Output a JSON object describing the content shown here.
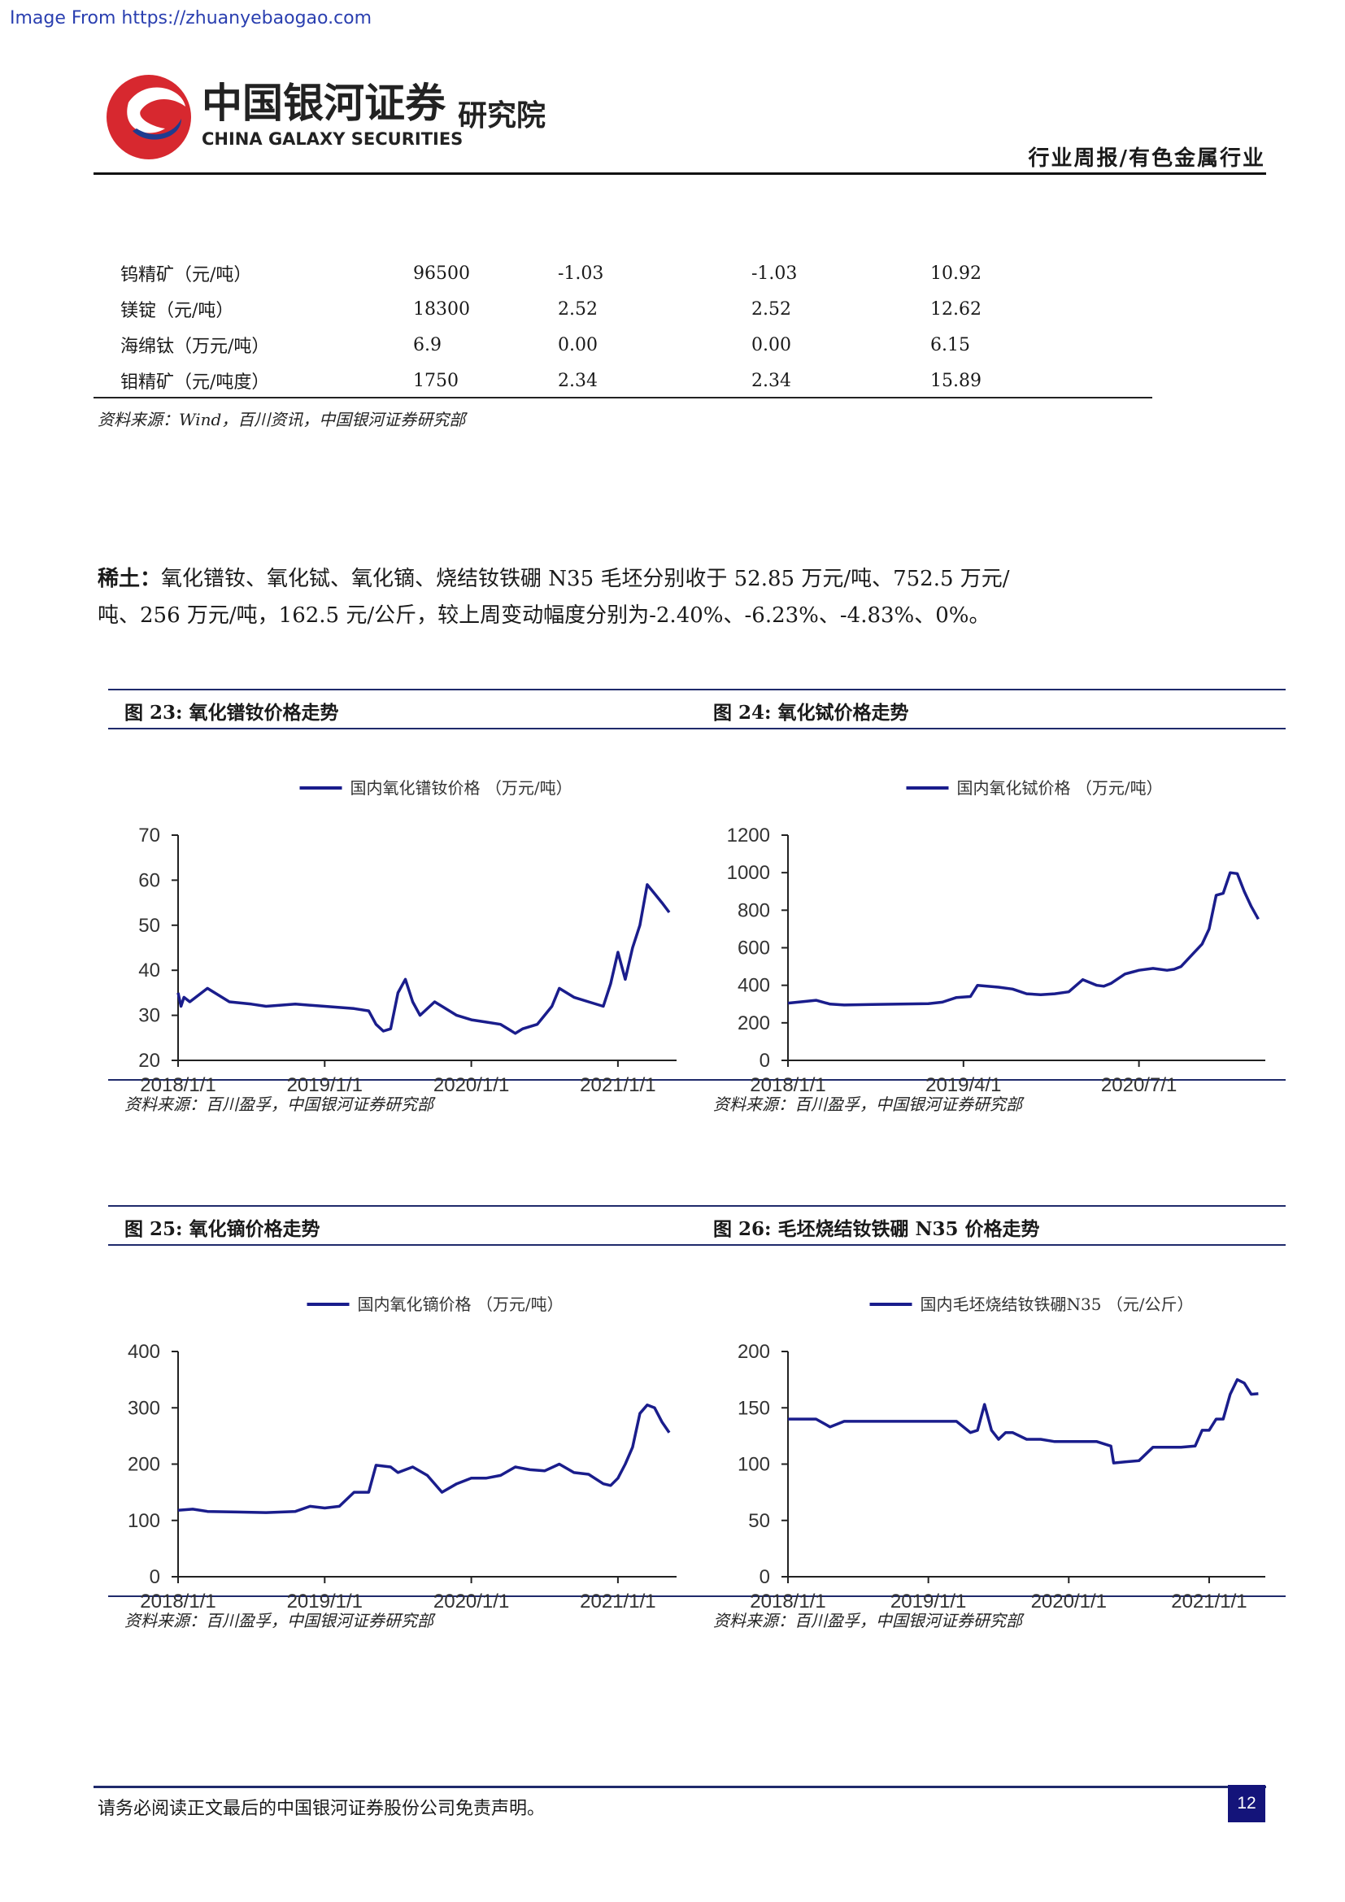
{
  "watermark": "Image From https://zhuanyebaogao.com",
  "header": {
    "logo_cn": "中国银河证券",
    "logo_en": "CHINA GALAXY SECURITIES",
    "logo_inst": "研究院",
    "category": "行业周报/有色金属行业",
    "colors": {
      "logo_red": "#d7282f",
      "logo_blue": "#1f3c8f"
    }
  },
  "table": {
    "rows": [
      [
        "钨精矿（元/吨）",
        "96500",
        "-1.03",
        "-1.03",
        "10.92"
      ],
      [
        "镁锭（元/吨）",
        "18300",
        "2.52",
        "2.52",
        "12.62"
      ],
      [
        "海绵钛（万元/吨）",
        "6.9",
        "0.00",
        "0.00",
        "6.15"
      ],
      [
        "钼精矿（元/吨度）",
        "1750",
        "2.34",
        "2.34",
        "15.89"
      ]
    ],
    "source": "资料来源：Wind，百川资讯，中国银河证券研究部"
  },
  "rare_earth": {
    "label": "稀土：",
    "text": "氧化镨钕、氧化铽、氧化镝、烧结钕铁硼 N35 毛坯分别收于 52.85 万元/吨、752.5 万元/吨、256 万元/吨，162.5 元/公斤，较上周变动幅度分别为-2.40%、-6.23%、-4.83%、0%。"
  },
  "figures": [
    {
      "title": "图 23:  氧化镨钕价格走势",
      "source": "资料来源：百川盈孚，中国银河证券研究部",
      "chart_data": {
        "type": "line",
        "series": [
          {
            "name": "国内氧化镨钕价格 （万元/吨）",
            "x": [
              2018.0,
              2018.02,
              2018.04,
              2018.08,
              2018.2,
              2018.35,
              2018.5,
              2018.6,
              2018.8,
              2019.0,
              2019.2,
              2019.3,
              2019.35,
              2019.4,
              2019.45,
              2019.5,
              2019.55,
              2019.6,
              2019.65,
              2019.75,
              2019.8,
              2019.9,
              2020.0,
              2020.1,
              2020.2,
              2020.25,
              2020.3,
              2020.35,
              2020.45,
              2020.5,
              2020.55,
              2020.6,
              2020.7,
              2020.8,
              2020.9,
              2020.95,
              2021.0,
              2021.05,
              2021.1,
              2021.15,
              2021.2,
              2021.25,
              2021.3,
              2021.35
            ],
            "values": [
              35,
              32,
              34,
              33,
              36,
              33,
              32.5,
              32,
              32.5,
              32,
              31.5,
              31,
              28,
              26.5,
              27,
              35,
              38,
              33,
              30,
              33,
              32,
              30,
              29,
              28.5,
              28,
              27,
              26,
              27,
              28,
              30,
              32,
              36,
              34,
              33,
              32,
              37,
              44,
              38,
              45,
              50,
              59,
              57,
              55,
              52.85
            ]
          }
        ],
        "xticks": [
          "2018/1/1",
          "2019/1/1",
          "2020/1/1",
          "2021/1/1"
        ],
        "xtick_positions": [
          2018,
          2019,
          2020,
          2021
        ],
        "xlim": [
          2018,
          2021.4
        ],
        "yticks": [
          20,
          30,
          40,
          50,
          60,
          70
        ],
        "ylim": [
          20,
          70
        ],
        "legend_placement": "top-center",
        "color": "#1a1d8c"
      }
    },
    {
      "title": "图 24:  氧化铽价格走势",
      "source": "资料来源：百川盈孚，中国银河证券研究部",
      "chart_data": {
        "type": "line",
        "series": [
          {
            "name": "国内氧化铽价格 （万元/吨）",
            "x": [
              2018.0,
              2018.2,
              2018.3,
              2018.4,
              2018.6,
              2018.8,
              2019.0,
              2019.1,
              2019.2,
              2019.3,
              2019.35,
              2019.5,
              2019.6,
              2019.7,
              2019.8,
              2019.9,
              2020.0,
              2020.1,
              2020.2,
              2020.25,
              2020.3,
              2020.4,
              2020.45,
              2020.5,
              2020.6,
              2020.7,
              2020.75,
              2020.8,
              2020.9,
              2020.95,
              2021.0,
              2021.05,
              2021.1,
              2021.15,
              2021.2,
              2021.25,
              2021.3,
              2021.35
            ],
            "values": [
              305,
              320,
              300,
              295,
              298,
              300,
              302,
              310,
              335,
              340,
              400,
              390,
              380,
              355,
              350,
              355,
              365,
              430,
              400,
              395,
              410,
              460,
              470,
              480,
              490,
              480,
              485,
              500,
              580,
              620,
              700,
              880,
              890,
              1000,
              995,
              900,
              820,
              752.5
            ]
          }
        ],
        "xticks": [
          "2018/1/1",
          "2019/4/1",
          "2020/7/1"
        ],
        "xtick_positions": [
          2018,
          2019.25,
          2020.5
        ],
        "xlim": [
          2018,
          2021.4
        ],
        "yticks": [
          0,
          200,
          400,
          600,
          800,
          1000,
          1200
        ],
        "ylim": [
          0,
          1200
        ],
        "legend_placement": "top-center",
        "color": "#1a1d8c"
      }
    },
    {
      "title": "图 25:  氧化镝价格走势",
      "source": "资料来源：百川盈孚，中国银河证券研究部",
      "chart_data": {
        "type": "line",
        "series": [
          {
            "name": "国内氧化镝价格 （万元/吨）",
            "x": [
              2018.0,
              2018.1,
              2018.2,
              2018.4,
              2018.6,
              2018.8,
              2018.9,
              2019.0,
              2019.1,
              2019.2,
              2019.3,
              2019.35,
              2019.45,
              2019.5,
              2019.6,
              2019.7,
              2019.8,
              2019.9,
              2020.0,
              2020.1,
              2020.2,
              2020.3,
              2020.4,
              2020.5,
              2020.6,
              2020.7,
              2020.8,
              2020.9,
              2020.95,
              2021.0,
              2021.05,
              2021.1,
              2021.15,
              2021.2,
              2021.25,
              2021.3,
              2021.35
            ],
            "values": [
              118,
              120,
              116,
              115,
              114,
              116,
              125,
              122,
              125,
              150,
              150,
              198,
              195,
              185,
              195,
              180,
              150,
              165,
              175,
              175,
              180,
              195,
              190,
              188,
              200,
              185,
              182,
              165,
              162,
              175,
              200,
              230,
              290,
              305,
              300,
              275,
              256
            ]
          }
        ],
        "xticks": [
          "2018/1/1",
          "2019/1/1",
          "2020/1/1",
          "2021/1/1"
        ],
        "xtick_positions": [
          2018,
          2019,
          2020,
          2021
        ],
        "xlim": [
          2018,
          2021.4
        ],
        "yticks": [
          0,
          100,
          200,
          300,
          400
        ],
        "ylim": [
          0,
          400
        ],
        "legend_placement": "top-center",
        "color": "#1a1d8c"
      }
    },
    {
      "title": "图 26:  毛坯烧结钕铁硼 N35 价格走势",
      "source": "资料来源：百川盈孚，中国银河证券研究部",
      "chart_data": {
        "type": "line",
        "series": [
          {
            "name": "国内毛坯烧结钕铁硼N35 （元/公斤）",
            "x": [
              2018.0,
              2018.2,
              2018.3,
              2018.4,
              2018.6,
              2018.8,
              2019.0,
              2019.2,
              2019.3,
              2019.35,
              2019.4,
              2019.45,
              2019.5,
              2019.55,
              2019.6,
              2019.7,
              2019.8,
              2019.9,
              2020.0,
              2020.2,
              2020.3,
              2020.32,
              2020.4,
              2020.5,
              2020.6,
              2020.8,
              2020.9,
              2020.95,
              2021.0,
              2021.05,
              2021.1,
              2021.15,
              2021.2,
              2021.25,
              2021.3,
              2021.35
            ],
            "values": [
              140,
              140,
              133,
              138,
              138,
              138,
              138,
              138,
              128,
              130,
              153,
              130,
              122,
              128,
              128,
              122,
              122,
              120,
              120,
              120,
              116,
              101,
              102,
              103,
              115,
              115,
              116,
              130,
              130,
              140,
              140,
              162,
              175,
              172,
              162,
              162.5
            ]
          }
        ],
        "xticks": [
          "2018/1/1",
          "2019/1/1",
          "2020/1/1",
          "2021/1/1"
        ],
        "xtick_positions": [
          2018,
          2019,
          2020,
          2021
        ],
        "xlim": [
          2018,
          2021.4
        ],
        "yticks": [
          0,
          50,
          100,
          150,
          200
        ],
        "ylim": [
          0,
          200
        ],
        "legend_placement": "top-center",
        "color": "#1a1d8c"
      }
    }
  ],
  "footer": {
    "disclaimer": "请务必阅读正文最后的中国银河证券股份公司免责声明。",
    "page": "12"
  }
}
